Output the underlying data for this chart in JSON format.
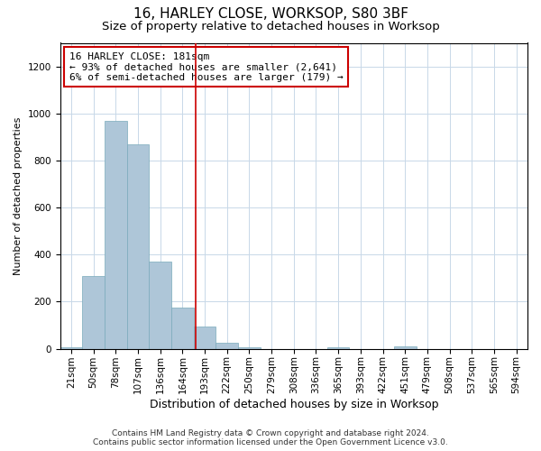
{
  "title": "16, HARLEY CLOSE, WORKSOP, S80 3BF",
  "subtitle": "Size of property relative to detached houses in Worksop",
  "xlabel": "Distribution of detached houses by size in Worksop",
  "ylabel": "Number of detached properties",
  "categories": [
    "21sqm",
    "50sqm",
    "78sqm",
    "107sqm",
    "136sqm",
    "164sqm",
    "193sqm",
    "222sqm",
    "250sqm",
    "279sqm",
    "308sqm",
    "336sqm",
    "365sqm",
    "393sqm",
    "422sqm",
    "451sqm",
    "479sqm",
    "508sqm",
    "537sqm",
    "565sqm",
    "594sqm"
  ],
  "values": [
    5,
    310,
    970,
    870,
    370,
    175,
    95,
    25,
    5,
    0,
    0,
    0,
    5,
    0,
    0,
    10,
    0,
    0,
    0,
    0,
    0
  ],
  "bar_color": "#aec6d8",
  "bar_edge_color": "#7aaabb",
  "vline_color": "#cc0000",
  "annotation_text": "16 HARLEY CLOSE: 181sqm\n← 93% of detached houses are smaller (2,641)\n6% of semi-detached houses are larger (179) →",
  "annotation_box_color": "#ffffff",
  "annotation_box_edge_color": "#cc0000",
  "ylim": [
    0,
    1300
  ],
  "yticks": [
    0,
    200,
    400,
    600,
    800,
    1000,
    1200
  ],
  "background_color": "#ffffff",
  "grid_color": "#c8d8e8",
  "title_fontsize": 11,
  "subtitle_fontsize": 9.5,
  "xlabel_fontsize": 9,
  "ylabel_fontsize": 8,
  "tick_fontsize": 7.5,
  "annotation_fontsize": 8,
  "footer_text": "Contains HM Land Registry data © Crown copyright and database right 2024.\nContains public sector information licensed under the Open Government Licence v3.0.",
  "footer_fontsize": 6.5
}
